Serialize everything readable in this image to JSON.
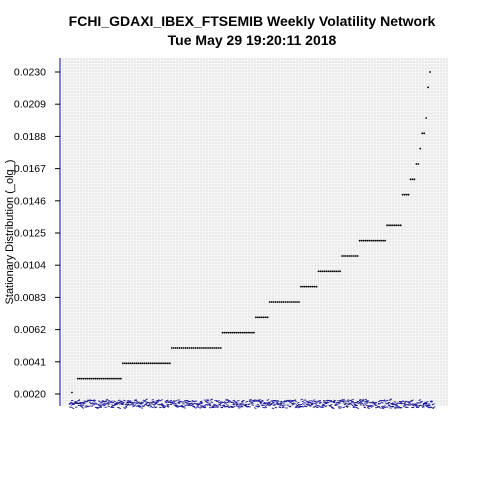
{
  "chart_data": {
    "type": "scatter",
    "title": "FCHI_GDAXI_IBEX_FTSEMIB  Weekly Volatility Network",
    "subtitle": "Tue May 29 19:20:11 2018",
    "xlabel": "",
    "ylabel": "Stationary Distribution (_olg_)",
    "ylim": [
      0.0018,
      0.0233
    ],
    "xlim": [
      0,
      186
    ],
    "y_ticks": [
      "0.0020",
      "0.0041",
      "0.0062",
      "0.0083",
      "0.0104",
      "0.0125",
      "0.0146",
      "0.0167",
      "0.0188",
      "0.0209",
      "0.0230"
    ],
    "grid": true,
    "series": [
      {
        "color": "#000000",
        "points": [
          {
            "x_from": 1,
            "x_to": 1,
            "y": 0.0021
          },
          {
            "x_from": 4,
            "x_to": 26,
            "y": 0.003
          },
          {
            "x_from": 27,
            "x_to": 51,
            "y": 0.004
          },
          {
            "x_from": 52,
            "x_to": 77,
            "y": 0.005
          },
          {
            "x_from": 78,
            "x_to": 94,
            "y": 0.006
          },
          {
            "x_from": 95,
            "x_to": 101,
            "y": 0.007
          },
          {
            "x_from": 102,
            "x_to": 117,
            "y": 0.008
          },
          {
            "x_from": 118,
            "x_to": 126,
            "y": 0.009
          },
          {
            "x_from": 127,
            "x_to": 138,
            "y": 0.01
          },
          {
            "x_from": 139,
            "x_to": 147,
            "y": 0.011
          },
          {
            "x_from": 148,
            "x_to": 161,
            "y": 0.012
          },
          {
            "x_from": 162,
            "x_to": 169,
            "y": 0.013
          },
          {
            "x_from": 170,
            "x_to": 173,
            "y": 0.015
          },
          {
            "x_from": 174,
            "x_to": 176,
            "y": 0.016
          },
          {
            "x_from": 177,
            "x_to": 178,
            "y": 0.017
          },
          {
            "x_from": 179,
            "x_to": 179,
            "y": 0.018
          },
          {
            "x_from": 180,
            "x_to": 181,
            "y": 0.019
          },
          {
            "x_from": 182,
            "x_to": 182,
            "y": 0.02
          },
          {
            "x_from": 183,
            "x_to": 183,
            "y": 0.022
          },
          {
            "x_from": 184,
            "x_to": 184,
            "y": 0.023
          }
        ]
      }
    ],
    "baseline_rug": {
      "color": "#1a1a9c",
      "y": 0.0018,
      "x_from": 0,
      "x_to": 186
    },
    "left_axis_color": "#2a2ab8"
  }
}
